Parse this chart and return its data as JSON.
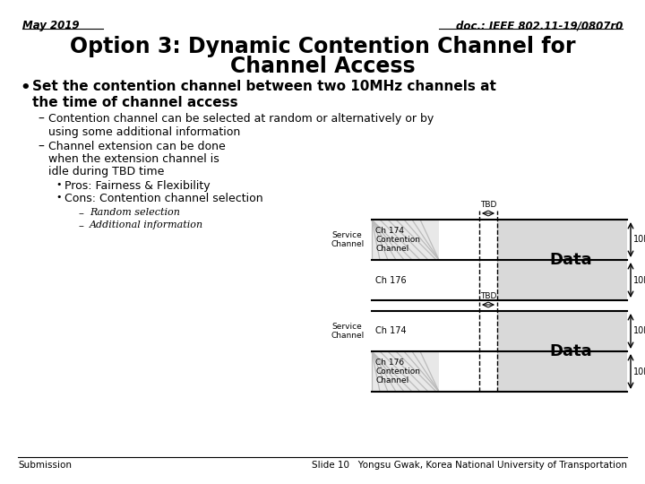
{
  "header_left": "May 2019",
  "header_right": "doc.: IEEE 802.11-19/0807r0",
  "title_line1": "Option 3: Dynamic Contention Channel for",
  "title_line2": "Channel Access",
  "footer_left": "Submission",
  "footer_right": "Slide 10   Yongsu Gwak, Korea National University of Transportation",
  "bg_color": "#ffffff",
  "text_color": "#000000",
  "diagram_bg": "#d9d9d9",
  "contention_bg": "#e8e8e8",
  "hatch_color": "#bbbbbb"
}
